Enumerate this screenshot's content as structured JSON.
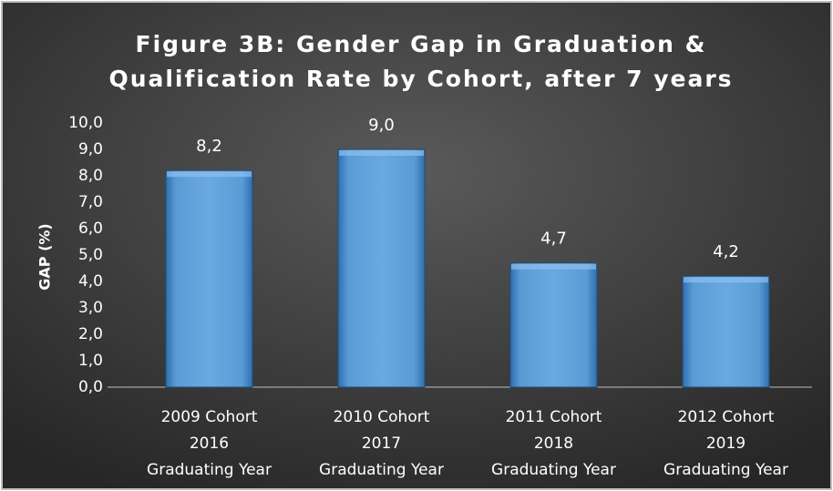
{
  "chart_data": {
    "type": "bar",
    "title": [
      "Figure 3B: Gender Gap in Graduation &",
      "Qualification Rate by Cohort, after 7 years"
    ],
    "ylabel": "GAP (%)",
    "categories": [
      [
        "2009 Cohort",
        "2016",
        "Graduating Year"
      ],
      [
        "2010 Cohort",
        "2017",
        "Graduating Year"
      ],
      [
        "2011 Cohort",
        "2018",
        "Graduating Year"
      ],
      [
        "2012 Cohort",
        "2019",
        "Graduating Year"
      ]
    ],
    "values": [
      8.2,
      9.0,
      4.7,
      4.2
    ],
    "value_labels": [
      "8,2",
      "9,0",
      "4,7",
      "4,2"
    ],
    "color": "#5b9bd5",
    "ylim": [
      0,
      10
    ],
    "yticks": [
      {
        "value": 0,
        "label": "0,0"
      },
      {
        "value": 1,
        "label": "1,0"
      },
      {
        "value": 2,
        "label": "2,0"
      },
      {
        "value": 3,
        "label": "3,0"
      },
      {
        "value": 4,
        "label": "4,0"
      },
      {
        "value": 5,
        "label": "5,0"
      },
      {
        "value": 6,
        "label": "6,0"
      },
      {
        "value": 7,
        "label": "7,0"
      },
      {
        "value": 8,
        "label": "8,0"
      },
      {
        "value": 9,
        "label": "9,0"
      },
      {
        "value": 10,
        "label": "10,0"
      }
    ],
    "grid": false
  }
}
